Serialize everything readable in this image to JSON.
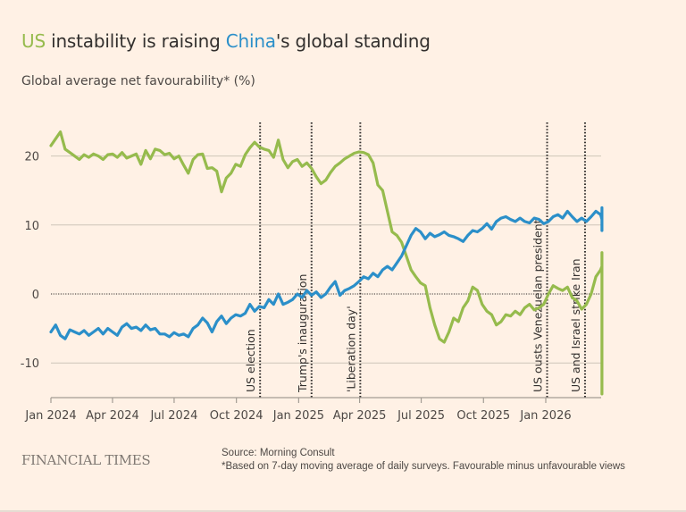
{
  "header": {
    "title_parts": {
      "us": "US",
      "mid": " instability is raising ",
      "china": "China",
      "end": "'s global standing"
    },
    "subtitle": "Global average net favourability* (%)"
  },
  "footer": {
    "brand": "FINANCIAL TIMES",
    "source": "Source: Morning Consult",
    "note": "*Based on 7-day moving average of daily surveys. Favourable minus unfavourable views"
  },
  "colors": {
    "us": "#96bb4d",
    "china": "#2b8fc9",
    "background": "#fff1e5",
    "grid": "#cec6b9",
    "zero": "#33302e"
  },
  "chart_data": {
    "type": "line",
    "title": "US instability is raising China's global standing",
    "ylabel": "Global average net favourability* (%)",
    "xlabel": "",
    "ylim": [
      -15,
      25
    ],
    "yticks": [
      20,
      10,
      0,
      -10
    ],
    "xlim": [
      "2024-01-01",
      "2026-03-25"
    ],
    "xticks": [
      {
        "date": "2024-01-01",
        "label": "Jan 2024"
      },
      {
        "date": "2024-04-01",
        "label": "Apr 2024"
      },
      {
        "date": "2024-07-01",
        "label": "Jul 2024"
      },
      {
        "date": "2024-10-01",
        "label": "Oct 2024"
      },
      {
        "date": "2025-01-01",
        "label": "Jan 2025"
      },
      {
        "date": "2025-04-01",
        "label": "Apr 2025"
      },
      {
        "date": "2025-07-01",
        "label": "Jul 2025"
      },
      {
        "date": "2025-10-01",
        "label": "Oct 2025"
      },
      {
        "date": "2026-01-01",
        "label": "Jan 2026"
      }
    ],
    "grid": true,
    "events": [
      {
        "date": "2024-11-05",
        "label": "US election"
      },
      {
        "date": "2025-01-20",
        "label": "Trump's inauguration"
      },
      {
        "date": "2025-04-02",
        "label": "'Liberation day'"
      },
      {
        "date": "2026-01-03",
        "label": "US ousts Venezuelan president"
      },
      {
        "date": "2026-02-28",
        "label": "US and Israel strike Iran"
      }
    ],
    "series": [
      {
        "name": "US",
        "color": "#96bb4d",
        "start": "2024-01-01",
        "step_days": 7,
        "values": [
          21.5,
          22.5,
          23.5,
          21,
          20.5,
          20,
          19.5,
          20.2,
          19.8,
          20.3,
          20,
          19.5,
          20.2,
          20.3,
          19.8,
          20.5,
          19.7,
          20,
          20.3,
          18.8,
          20.8,
          19.6,
          21,
          20.8,
          20.2,
          20.4,
          19.6,
          20,
          18.7,
          17.5,
          19.5,
          20.2,
          20.3,
          18.2,
          18.3,
          17.8,
          14.8,
          16.8,
          17.5,
          18.8,
          18.5,
          20.2,
          21.2,
          22,
          21.3,
          21,
          20.8,
          19.8,
          22.3,
          19.5,
          18.3,
          19.2,
          19.5,
          18.5,
          19,
          18.2,
          17,
          16,
          16.5,
          17.6,
          18.5,
          19,
          19.6,
          20,
          20.4,
          20.6,
          20.5,
          20.2,
          19,
          15.8,
          15,
          12,
          9,
          8.5,
          7.5,
          5.5,
          3.5,
          2.5,
          1.6,
          1.2,
          -2,
          -4.5,
          -6.5,
          -7,
          -5.5,
          -3.5,
          -4,
          -2,
          -1,
          1,
          0.5,
          -1.5,
          -2.5,
          -3,
          -4.5,
          -4,
          -3,
          -3.2,
          -2.5,
          -3,
          -2,
          -1.5,
          -2.3,
          -2,
          -1.5,
          0,
          1.2,
          0.8,
          0.5,
          1,
          -0.5,
          -1,
          -2.2,
          -1.5,
          0,
          2.5,
          3.5,
          4,
          5.2,
          3,
          3.5,
          2.5,
          4,
          4.2,
          3.5,
          3.8,
          4.5,
          5,
          6,
          5.5,
          3,
          0.5,
          -1.5,
          -3,
          -4,
          -5.5,
          -6,
          -6.5,
          -6.8,
          -6.5,
          -7,
          -6.5,
          -7.2,
          -6,
          -8.5,
          -11,
          -11.5,
          -12.5,
          -13,
          -14.5
        ]
      },
      {
        "name": "China",
        "color": "#2b8fc9",
        "start": "2024-01-01",
        "step_days": 7,
        "values": [
          -5.5,
          -4.5,
          -6,
          -6.5,
          -5.2,
          -5.5,
          -5.8,
          -5.3,
          -6,
          -5.5,
          -5,
          -5.8,
          -5,
          -5.5,
          -6,
          -4.8,
          -4.3,
          -5,
          -4.8,
          -5.3,
          -4.5,
          -5.2,
          -5,
          -5.8,
          -5.8,
          -6.2,
          -5.6,
          -6,
          -5.8,
          -6.2,
          -5,
          -4.5,
          -3.5,
          -4.2,
          -5.5,
          -4,
          -3.2,
          -4.3,
          -3.5,
          -3,
          -3.2,
          -2.8,
          -1.5,
          -2.5,
          -1.8,
          -2,
          -0.8,
          -1.5,
          0,
          -1.5,
          -1.2,
          -0.8,
          0,
          -0.5,
          0.5,
          -0.2,
          0.3,
          -0.5,
          0,
          1,
          1.8,
          -0.2,
          0.5,
          0.8,
          1.2,
          1.8,
          2.5,
          2.2,
          3,
          2.5,
          3.5,
          4,
          3.5,
          4.5,
          5.5,
          7,
          8.5,
          9.5,
          9,
          8,
          8.8,
          8.3,
          8.6,
          9,
          8.5,
          8.3,
          8,
          7.6,
          8.5,
          9.2,
          9,
          9.5,
          10.2,
          9.4,
          10.5,
          11,
          11.2,
          10.8,
          10.5,
          11,
          10.5,
          10.3,
          11,
          10.8,
          10.2,
          10.5,
          11.2,
          11.5,
          11,
          12,
          11.2,
          10.5,
          11,
          10.5,
          11.2,
          12,
          11.5,
          10.8,
          11,
          12,
          11.4,
          10,
          9.5,
          10.2,
          11,
          11.3,
          10.5,
          11.5,
          12.5,
          11.8,
          10,
          9.3,
          9.5,
          10,
          9.2,
          9.5,
          10,
          9.7,
          9.5,
          9.2,
          9.8,
          9.6,
          10.5,
          10.8,
          11,
          10.4,
          11.2,
          10.2
        ]
      }
    ]
  }
}
